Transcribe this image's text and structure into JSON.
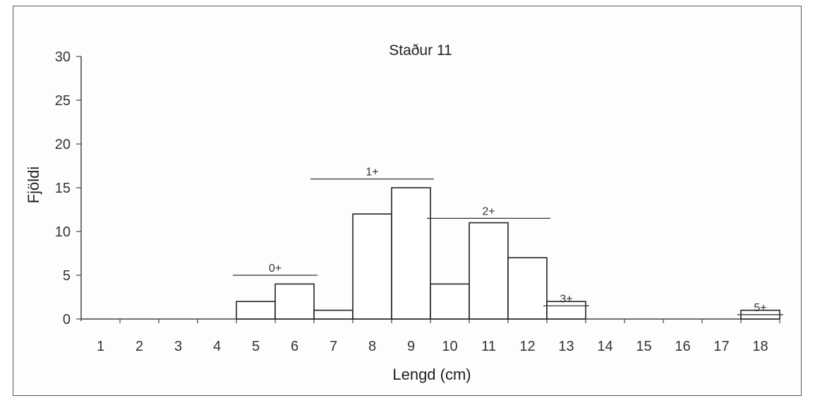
{
  "chart_data": {
    "type": "bar",
    "title": "Staður 11",
    "xlabel": "Lengd (cm)",
    "ylabel": "Fjöldi",
    "ylim": [
      0,
      30
    ],
    "yticks": [
      0,
      5,
      10,
      15,
      20,
      25,
      30
    ],
    "categories": [
      "1",
      "2",
      "3",
      "4",
      "5",
      "6",
      "7",
      "8",
      "9",
      "10",
      "11",
      "12",
      "13",
      "14",
      "15",
      "16",
      "17",
      "18"
    ],
    "values": [
      0,
      0,
      0,
      0,
      2,
      4,
      1,
      12,
      15,
      4,
      11,
      7,
      2,
      0,
      0,
      0,
      0,
      1
    ],
    "grid": false,
    "legend": "none",
    "annotations": [
      {
        "label": "0+",
        "from": "5",
        "to": "6",
        "y": 5
      },
      {
        "label": "1+",
        "from": "7",
        "to": "9",
        "y": 16
      },
      {
        "label": "2+",
        "from": "10",
        "to": "12",
        "y": 11.5
      },
      {
        "label": "3+",
        "from": "13",
        "to": "13",
        "y": 1.5
      },
      {
        "label": "5+",
        "from": "18",
        "to": "18",
        "y": 0.5
      }
    ]
  }
}
